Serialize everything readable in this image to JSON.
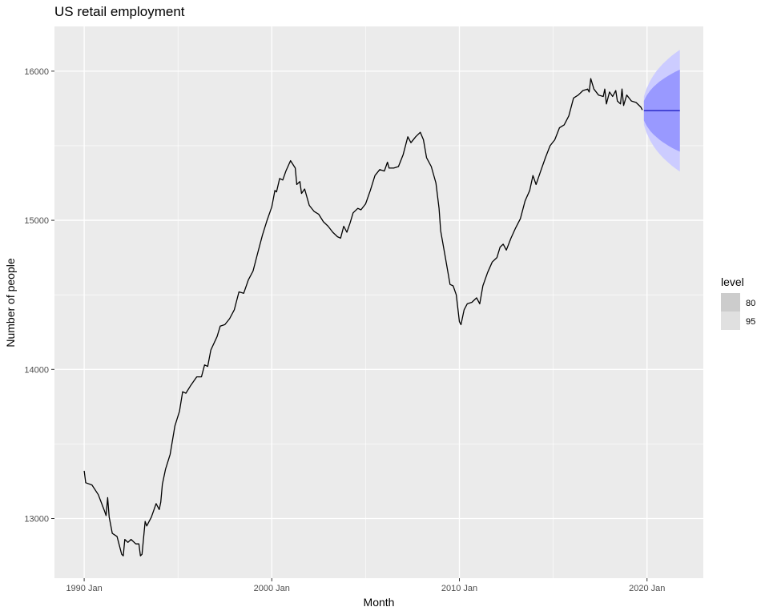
{
  "chart_data": {
    "type": "line",
    "title": "US retail employment",
    "xlabel": "Month",
    "ylabel": "Number of people",
    "x_ticks": [
      "1990 Jan",
      "2000 Jan",
      "2010 Jan",
      "2020 Jan"
    ],
    "y_ticks": [
      13000,
      14000,
      15000,
      16000
    ],
    "xlim": [
      "1988 Jun",
      "2023 Jan"
    ],
    "ylim": [
      12600,
      16300
    ],
    "grid": true,
    "legend": {
      "title": "level",
      "position": "right",
      "entries": [
        {
          "label": "80",
          "color": "#cccccc"
        },
        {
          "label": "95",
          "color": "#e0e0e0"
        }
      ]
    },
    "colors": {
      "panel": "#ebebeb",
      "grid": "#ffffff",
      "line": "#000000",
      "forecast_line": "#3333cc",
      "interval_80": "#9999ff",
      "interval_95": "#ccccff"
    },
    "series": [
      {
        "values": [
          [
            "1990 Jan",
            13320
          ],
          [
            "1990 Feb",
            13240
          ],
          [
            "1990 Jun",
            13225
          ],
          [
            "1990 Oct",
            13160
          ],
          [
            "1991 Feb",
            13050
          ],
          [
            "1991 Mar",
            13020
          ],
          [
            "1991 Apr",
            13140
          ],
          [
            "1991 May",
            13010
          ],
          [
            "1991 Jul",
            12900
          ],
          [
            "1991 Oct",
            12880
          ],
          [
            "1992 Jan",
            12760
          ],
          [
            "1992 Feb",
            12750
          ],
          [
            "1992 Mar",
            12860
          ],
          [
            "1992 May",
            12840
          ],
          [
            "1992 Jul",
            12860
          ],
          [
            "1992 Oct",
            12830
          ],
          [
            "1992 Dec",
            12830
          ],
          [
            "1993 Jan",
            12750
          ],
          [
            "1993 Feb",
            12760
          ],
          [
            "1993 Apr",
            12980
          ],
          [
            "1993 May",
            12950
          ],
          [
            "1993 Aug",
            13010
          ],
          [
            "1993 Nov",
            13100
          ],
          [
            "1994 Jan",
            13060
          ],
          [
            "1994 Feb",
            13110
          ],
          [
            "1994 Mar",
            13230
          ],
          [
            "1994 May",
            13330
          ],
          [
            "1994 Aug",
            13430
          ],
          [
            "1994 Nov",
            13620
          ],
          [
            "1995 Feb",
            13720
          ],
          [
            "1995 Apr",
            13850
          ],
          [
            "1995 Jun",
            13840
          ],
          [
            "1995 Sep",
            13890
          ],
          [
            "1996 Jan",
            13950
          ],
          [
            "1996 Apr",
            13950
          ],
          [
            "1996 Jun",
            14030
          ],
          [
            "1996 Aug",
            14020
          ],
          [
            "1996 Oct",
            14130
          ],
          [
            "1997 Feb",
            14220
          ],
          [
            "1997 Apr",
            14290
          ],
          [
            "1997 Jul",
            14300
          ],
          [
            "1997 Oct",
            14340
          ],
          [
            "1998 Jan",
            14400
          ],
          [
            "1998 Apr",
            14520
          ],
          [
            "1998 Jul",
            14510
          ],
          [
            "1998 Oct",
            14600
          ],
          [
            "1999 Jan",
            14660
          ],
          [
            "1999 Apr",
            14780
          ],
          [
            "1999 Jul",
            14900
          ],
          [
            "1999 Oct",
            15000
          ],
          [
            "2000 Jan",
            15090
          ],
          [
            "2000 Mar",
            15200
          ],
          [
            "2000 Apr",
            15190
          ],
          [
            "2000 Jun",
            15280
          ],
          [
            "2000 Aug",
            15270
          ],
          [
            "2000 Oct",
            15330
          ],
          [
            "2001 Jan",
            15400
          ],
          [
            "2001 Apr",
            15350
          ],
          [
            "2001 May",
            15240
          ],
          [
            "2001 Jul",
            15260
          ],
          [
            "2001 Aug",
            15180
          ],
          [
            "2001 Oct",
            15210
          ],
          [
            "2002 Jan",
            15100
          ],
          [
            "2002 Apr",
            15060
          ],
          [
            "2002 Jul",
            15040
          ],
          [
            "2002 Oct",
            14990
          ],
          [
            "2003 Jan",
            14960
          ],
          [
            "2003 Apr",
            14920
          ],
          [
            "2003 Jul",
            14890
          ],
          [
            "2003 Sep",
            14880
          ],
          [
            "2003 Nov",
            14960
          ],
          [
            "2004 Jan",
            14920
          ],
          [
            "2004 Mar",
            14980
          ],
          [
            "2004 May",
            15050
          ],
          [
            "2004 Aug",
            15080
          ],
          [
            "2004 Oct",
            15070
          ],
          [
            "2005 Jan",
            15110
          ],
          [
            "2005 Apr",
            15200
          ],
          [
            "2005 Jul",
            15300
          ],
          [
            "2005 Oct",
            15340
          ],
          [
            "2006 Jan",
            15330
          ],
          [
            "2006 Mar",
            15390
          ],
          [
            "2006 Apr",
            15350
          ],
          [
            "2006 Jul",
            15350
          ],
          [
            "2006 Oct",
            15360
          ],
          [
            "2007 Jan",
            15440
          ],
          [
            "2007 Apr",
            15560
          ],
          [
            "2007 Jun",
            15520
          ],
          [
            "2007 Sep",
            15560
          ],
          [
            "2007 Dec",
            15590
          ],
          [
            "2008 Feb",
            15540
          ],
          [
            "2008 Apr",
            15420
          ],
          [
            "2008 Jul",
            15360
          ],
          [
            "2008 Oct",
            15250
          ],
          [
            "2008 Dec",
            15080
          ],
          [
            "2009 Jan",
            14930
          ],
          [
            "2009 Apr",
            14750
          ],
          [
            "2009 Jul",
            14570
          ],
          [
            "2009 Sep",
            14560
          ],
          [
            "2009 Nov",
            14500
          ],
          [
            "2010 Jan",
            14320
          ],
          [
            "2010 Feb",
            14300
          ],
          [
            "2010 Apr",
            14400
          ],
          [
            "2010 Jun",
            14440
          ],
          [
            "2010 Sep",
            14450
          ],
          [
            "2010 Dec",
            14480
          ],
          [
            "2011 Feb",
            14440
          ],
          [
            "2011 Apr",
            14560
          ],
          [
            "2011 Jul",
            14650
          ],
          [
            "2011 Oct",
            14720
          ],
          [
            "2012 Jan",
            14750
          ],
          [
            "2012 Mar",
            14820
          ],
          [
            "2012 May",
            14840
          ],
          [
            "2012 Jul",
            14800
          ],
          [
            "2012 Oct",
            14880
          ],
          [
            "2013 Jan",
            14950
          ],
          [
            "2013 Apr",
            15010
          ],
          [
            "2013 Jul",
            15130
          ],
          [
            "2013 Oct",
            15200
          ],
          [
            "2013 Dec",
            15300
          ],
          [
            "2014 Feb",
            15240
          ],
          [
            "2014 May",
            15330
          ],
          [
            "2014 Aug",
            15420
          ],
          [
            "2014 Nov",
            15500
          ],
          [
            "2015 Feb",
            15540
          ],
          [
            "2015 May",
            15620
          ],
          [
            "2015 Aug",
            15640
          ],
          [
            "2015 Nov",
            15700
          ],
          [
            "2016 Feb",
            15820
          ],
          [
            "2016 May",
            15840
          ],
          [
            "2016 Aug",
            15870
          ],
          [
            "2016 Nov",
            15880
          ],
          [
            "2016 Dec",
            15860
          ],
          [
            "2017 Jan",
            15950
          ],
          [
            "2017 Mar",
            15880
          ],
          [
            "2017 Jun",
            15840
          ],
          [
            "2017 Sep",
            15830
          ],
          [
            "2017 Oct",
            15880
          ],
          [
            "2017 Nov",
            15780
          ],
          [
            "2018 Jan",
            15860
          ],
          [
            "2018 Mar",
            15830
          ],
          [
            "2018 May",
            15870
          ],
          [
            "2018 Jun",
            15800
          ],
          [
            "2018 Aug",
            15780
          ],
          [
            "2018 Sep",
            15880
          ],
          [
            "2018 Oct",
            15770
          ],
          [
            "2018 Dec",
            15840
          ],
          [
            "2019 Mar",
            15800
          ],
          [
            "2019 Jun",
            15790
          ],
          [
            "2019 Sep",
            15760
          ],
          [
            "2019 Oct",
            15740
          ]
        ]
      }
    ],
    "forecast": {
      "mean": 15735,
      "x": [
        "2019 Nov",
        "2019 Dec",
        "2020 Jan",
        "2020 Mar",
        "2020 May",
        "2020 Jul",
        "2020 Sep",
        "2020 Nov",
        "2021 Jan",
        "2021 Mar",
        "2021 May",
        "2021 Jul",
        "2021 Sep",
        "2021 Oct"
      ],
      "upper_80": [
        15800,
        15822,
        15840,
        15870,
        15893,
        15912,
        15930,
        15945,
        15959,
        15972,
        15984,
        15995,
        16005,
        16010
      ],
      "lower_80": [
        15670,
        15648,
        15630,
        15600,
        15577,
        15558,
        15540,
        15525,
        15511,
        15498,
        15486,
        15475,
        15465,
        15460
      ],
      "upper_95": [
        15830,
        15863,
        15890,
        15935,
        15970,
        16000,
        16025,
        16048,
        16068,
        16087,
        16105,
        16121,
        16136,
        16143
      ],
      "lower_95": [
        15640,
        15607,
        15580,
        15535,
        15500,
        15470,
        15445,
        15422,
        15402,
        15383,
        15365,
        15349,
        15334,
        15327
      ]
    }
  }
}
